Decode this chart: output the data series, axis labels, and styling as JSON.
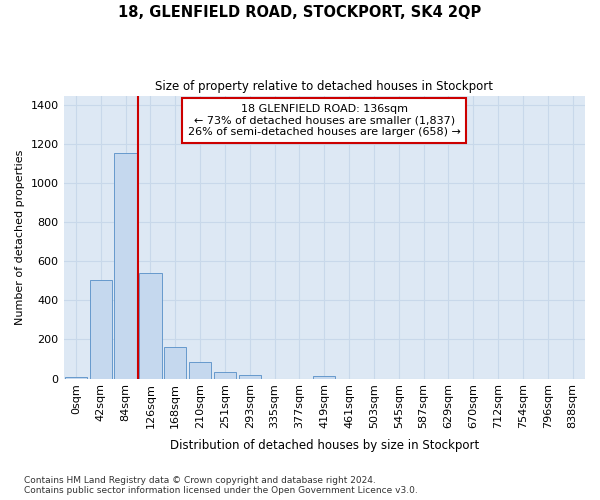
{
  "title": "18, GLENFIELD ROAD, STOCKPORT, SK4 2QP",
  "subtitle": "Size of property relative to detached houses in Stockport",
  "xlabel": "Distribution of detached houses by size in Stockport",
  "ylabel": "Number of detached properties",
  "footer_line1": "Contains HM Land Registry data © Crown copyright and database right 2024.",
  "footer_line2": "Contains public sector information licensed under the Open Government Licence v3.0.",
  "bar_labels": [
    "0sqm",
    "42sqm",
    "84sqm",
    "126sqm",
    "168sqm",
    "210sqm",
    "251sqm",
    "293sqm",
    "335sqm",
    "377sqm",
    "419sqm",
    "461sqm",
    "503sqm",
    "545sqm",
    "587sqm",
    "629sqm",
    "670sqm",
    "712sqm",
    "754sqm",
    "796sqm",
    "838sqm"
  ],
  "bar_values": [
    10,
    505,
    1155,
    540,
    160,
    85,
    35,
    20,
    0,
    0,
    14,
    0,
    0,
    0,
    0,
    0,
    0,
    0,
    0,
    0,
    0
  ],
  "bar_color": "#c5d8ee",
  "bar_edge_color": "#6699cc",
  "grid_color": "#c8d8ea",
  "bg_color": "#dde8f4",
  "vline_x": 2.5,
  "property_line_label": "18 GLENFIELD ROAD: 136sqm",
  "annotation_line2": "← 73% of detached houses are smaller (1,837)",
  "annotation_line3": "26% of semi-detached houses are larger (658) →",
  "vline_color": "#cc0000",
  "ylim": [
    0,
    1450
  ],
  "yticks": [
    0,
    200,
    400,
    600,
    800,
    1000,
    1200,
    1400
  ]
}
